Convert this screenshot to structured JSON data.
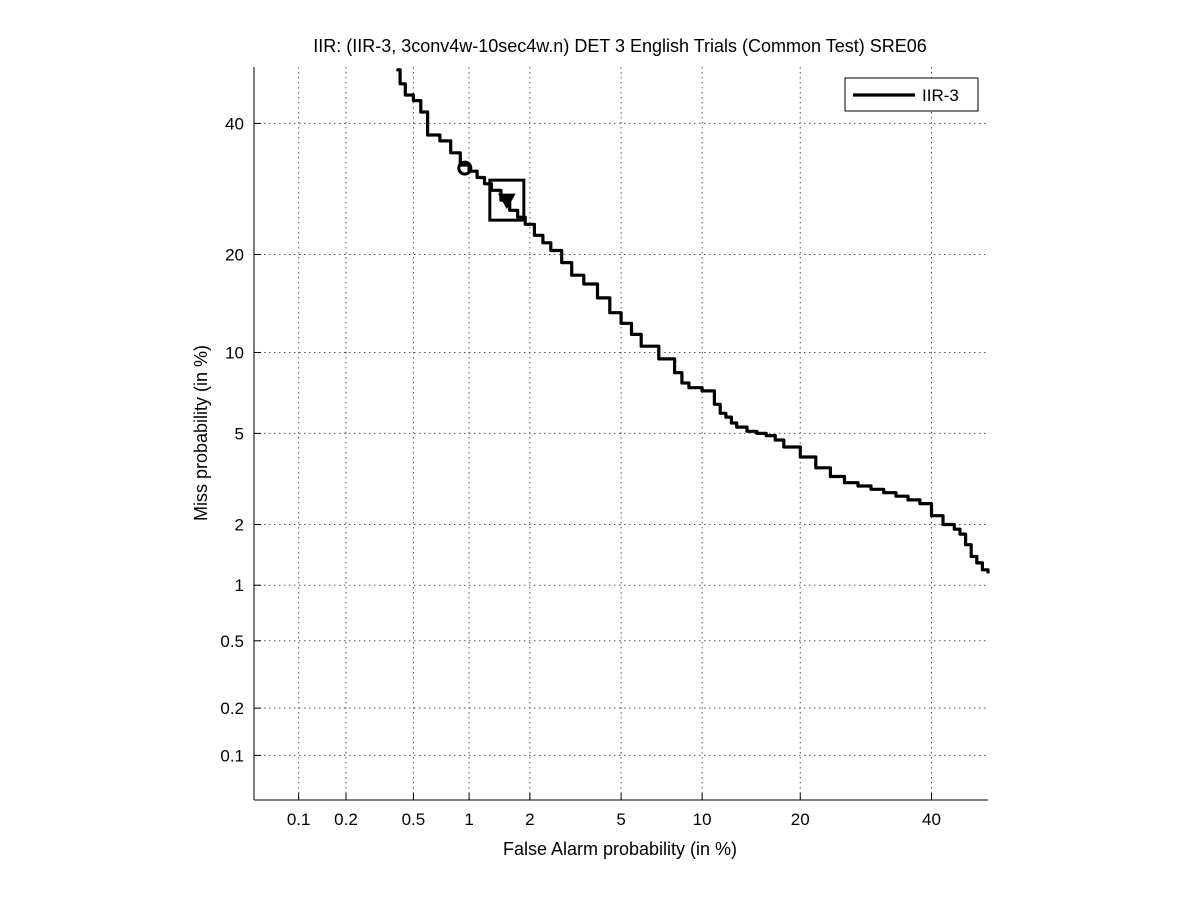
{
  "chart_data": {
    "type": "line",
    "title": "IIR: (IIR-3, 3conv4w-10sec4w.n) DET 3 English Trials (Common Test) SRE06",
    "xlabel": "False Alarm probability (in %)",
    "ylabel": "Miss probability (in %)",
    "scale": "probit",
    "xlim": [
      0.05,
      50
    ],
    "ylim": [
      0.05,
      50
    ],
    "x_ticks": [
      0.1,
      0.2,
      0.5,
      1,
      2,
      5,
      10,
      20,
      40
    ],
    "x_tick_labels": [
      "0.1",
      "0.2",
      "0.5",
      "1",
      "2",
      "5",
      "10",
      "20",
      "40"
    ],
    "y_ticks": [
      0.1,
      0.2,
      0.5,
      1,
      2,
      5,
      10,
      20,
      40
    ],
    "y_tick_labels": [
      "0.1",
      "0.2",
      "0.5",
      "1",
      "2",
      "5",
      "10",
      "20",
      "40"
    ],
    "grid": true,
    "legend_position": "top-right",
    "series": [
      {
        "name": "IIR-3",
        "color": "#000000",
        "x": [
          0.4,
          0.42,
          0.45,
          0.5,
          0.55,
          0.6,
          0.7,
          0.8,
          0.9,
          1.0,
          1.1,
          1.2,
          1.3,
          1.45,
          1.6,
          1.75,
          1.9,
          2.1,
          2.3,
          2.5,
          2.8,
          3.1,
          3.5,
          4.0,
          4.5,
          5.0,
          5.5,
          6.0,
          7.0,
          8.0,
          8.5,
          9.0,
          9.5,
          10.0,
          11.0,
          11.5,
          12.0,
          12.5,
          13.0,
          14.0,
          15.0,
          16.0,
          17.0,
          18.0,
          20.0,
          22.0,
          24.0,
          26.0,
          28.0,
          30.0,
          32.0,
          34.0,
          36.0,
          38.0,
          40.0,
          42.0,
          44.0,
          45.0,
          46.0,
          47.0,
          48.0,
          49.0,
          50.0
        ],
        "y": [
          49.5,
          47.0,
          45.0,
          44.0,
          42.0,
          38.0,
          37.0,
          35.0,
          33.0,
          32.0,
          31.0,
          30.0,
          29.0,
          27.5,
          26.0,
          25.0,
          24.0,
          22.5,
          21.5,
          20.5,
          19.0,
          17.5,
          16.5,
          15.0,
          13.5,
          12.5,
          11.5,
          10.5,
          9.5,
          8.5,
          7.8,
          7.5,
          7.5,
          7.3,
          6.5,
          6.0,
          5.8,
          5.5,
          5.3,
          5.1,
          5.0,
          4.9,
          4.7,
          4.4,
          4.0,
          3.6,
          3.3,
          3.1,
          3.0,
          2.9,
          2.8,
          2.7,
          2.6,
          2.5,
          2.2,
          2.0,
          1.9,
          1.8,
          1.6,
          1.4,
          1.3,
          1.2,
          1.15
        ]
      }
    ],
    "markers": [
      {
        "name": "min-dcf-point",
        "shape": "circle",
        "x": 0.95,
        "y": 32.5
      },
      {
        "name": "actual-dcf-point",
        "shape": "triangle-down",
        "x": 1.55,
        "y": 27.5
      },
      {
        "name": "actual-dcf-box",
        "shape": "square",
        "x": 1.55,
        "y": 27.5
      }
    ]
  }
}
